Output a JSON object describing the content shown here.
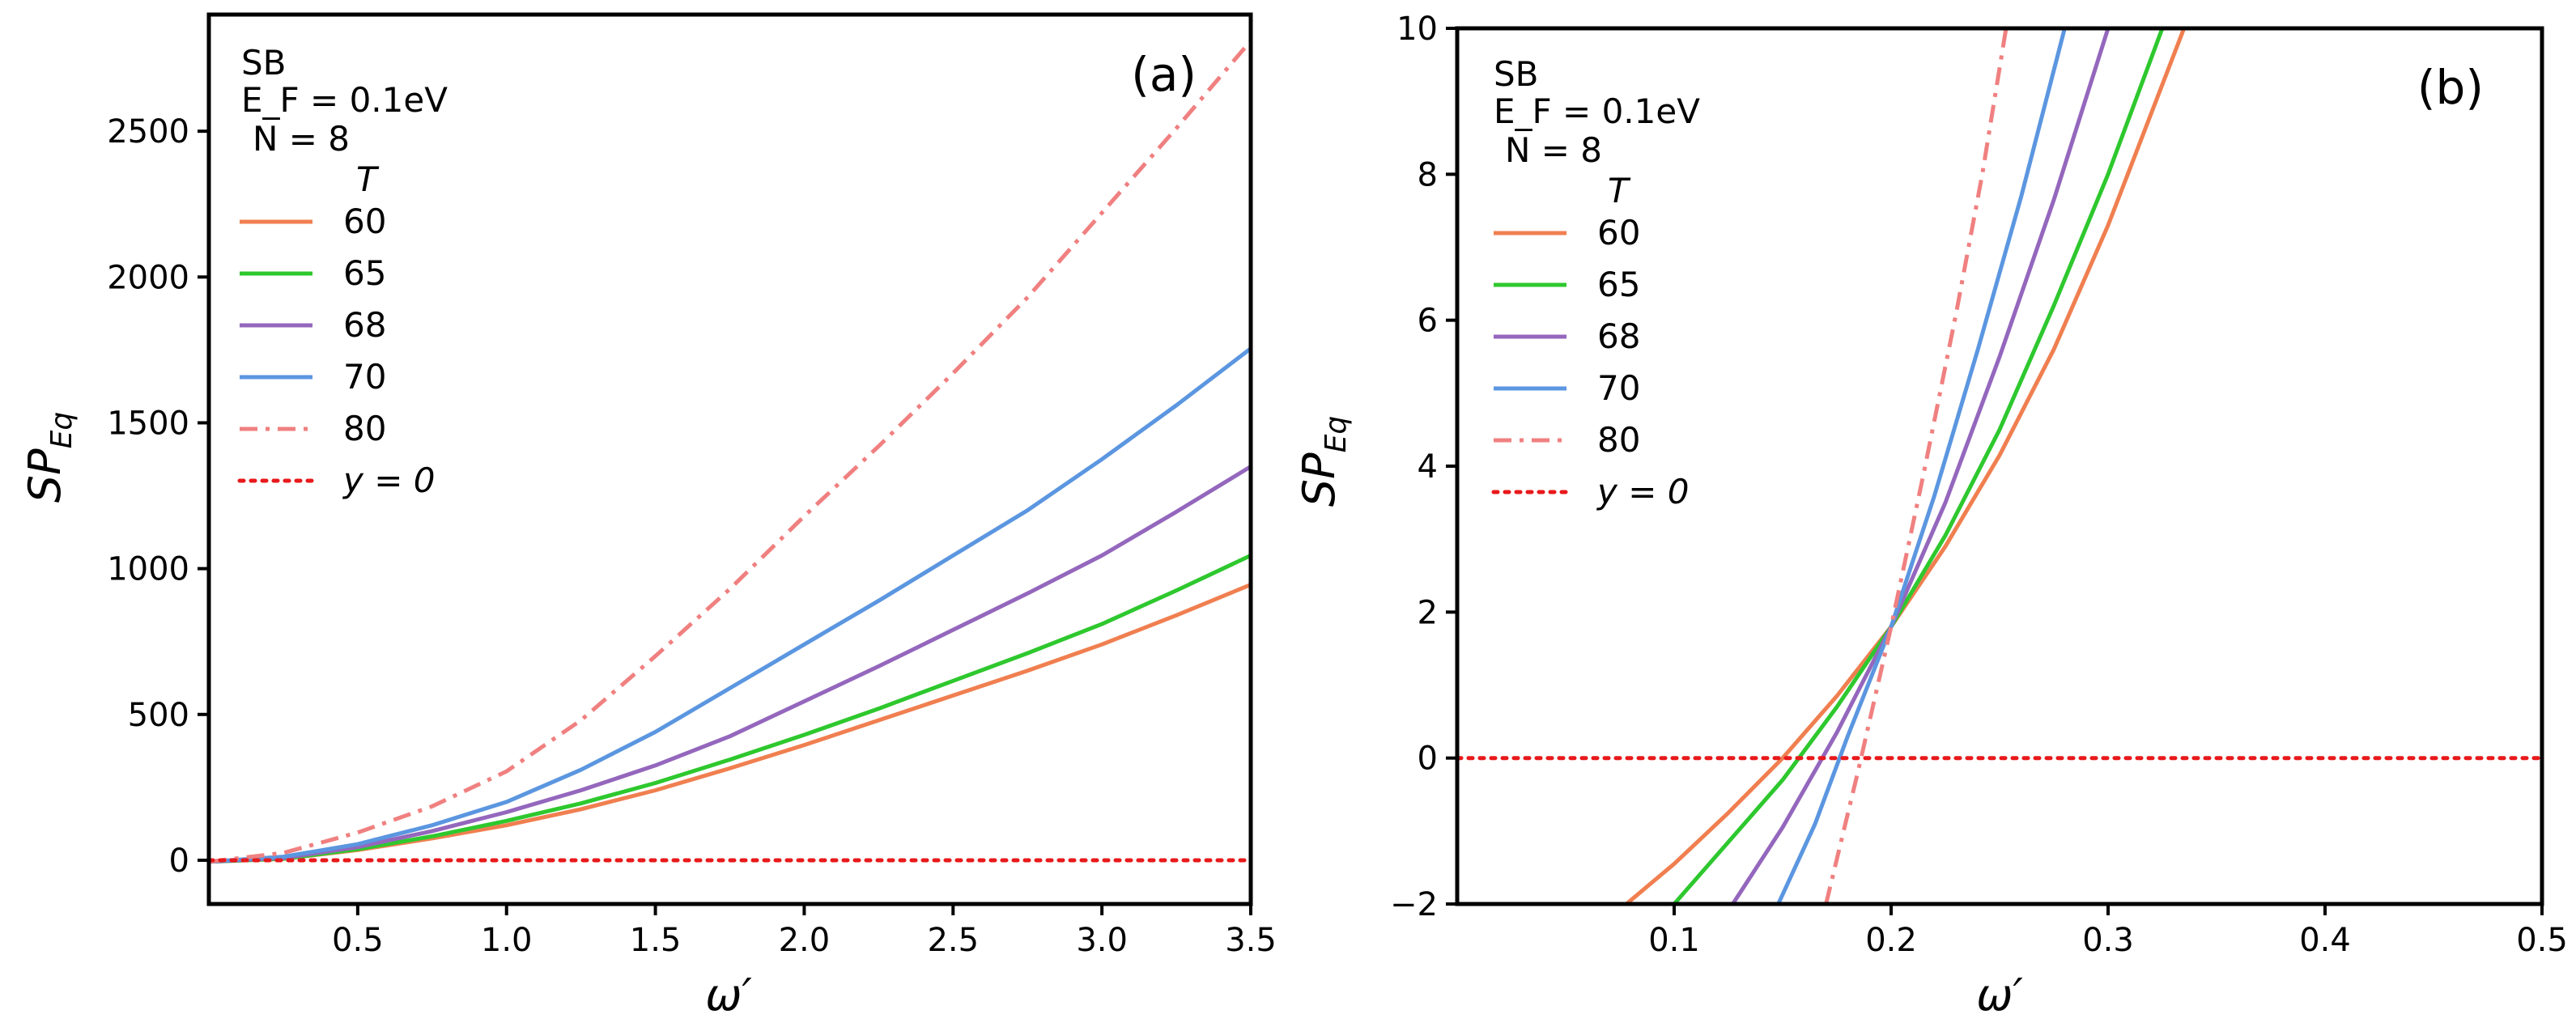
{
  "chart_data": [
    {
      "type": "line",
      "panel_label": "(a)",
      "xlabel": "ω′",
      "ylabel_main": "SP",
      "ylabel_sub": "Eq",
      "xlim": [
        0.0,
        3.5
      ],
      "ylim": [
        -150,
        2900
      ],
      "xticks": [
        0.5,
        1.0,
        1.5,
        2.0,
        2.5,
        3.0,
        3.5
      ],
      "xtick_labels": [
        "0.5",
        "1.0",
        "1.5",
        "2.0",
        "2.5",
        "3.0",
        "3.5"
      ],
      "yticks": [
        0,
        500,
        1000,
        1500,
        2000,
        2500
      ],
      "ytick_labels": [
        "0",
        "500",
        "1000",
        "1500",
        "2000",
        "2500"
      ],
      "annotation": {
        "line1": "SB",
        "line2": "E_F = 0.1eV",
        "line3": "N = 8"
      },
      "legend": {
        "title": "T",
        "entries": [
          "60",
          "65",
          "68",
          "70",
          "80",
          "y = 0"
        ]
      },
      "series": [
        {
          "name": "60",
          "color": "#f07f50",
          "dash": "solid",
          "x": [
            0.0,
            0.25,
            0.5,
            0.75,
            1.0,
            1.25,
            1.5,
            1.75,
            2.0,
            2.25,
            2.5,
            2.75,
            3.0,
            3.25,
            3.5
          ],
          "y": [
            -5,
            5,
            35,
            75,
            120,
            175,
            240,
            315,
            395,
            480,
            565,
            650,
            740,
            840,
            945
          ]
        },
        {
          "name": "65",
          "color": "#2ec82e",
          "dash": "solid",
          "x": [
            0.0,
            0.25,
            0.5,
            0.75,
            1.0,
            1.25,
            1.5,
            1.75,
            2.0,
            2.25,
            2.5,
            2.75,
            3.0,
            3.25,
            3.5
          ],
          "y": [
            -5,
            5,
            38,
            82,
            135,
            195,
            265,
            345,
            430,
            520,
            615,
            710,
            810,
            925,
            1045
          ]
        },
        {
          "name": "68",
          "color": "#9467bd",
          "dash": "solid",
          "x": [
            0.0,
            0.25,
            0.5,
            0.75,
            1.0,
            1.25,
            1.5,
            1.75,
            2.0,
            2.25,
            2.5,
            2.75,
            3.0,
            3.25,
            3.5
          ],
          "y": [
            -5,
            8,
            45,
            100,
            165,
            240,
            325,
            425,
            545,
            665,
            790,
            915,
            1045,
            1195,
            1350
          ]
        },
        {
          "name": "70",
          "color": "#5b96e0",
          "dash": "solid",
          "x": [
            0.0,
            0.25,
            0.5,
            0.75,
            1.0,
            1.25,
            1.5,
            1.75,
            2.0,
            2.25,
            2.5,
            2.75,
            3.0,
            3.25,
            3.5
          ],
          "y": [
            -5,
            12,
            55,
            120,
            200,
            310,
            440,
            590,
            740,
            890,
            1045,
            1200,
            1375,
            1560,
            1755
          ]
        },
        {
          "name": "80",
          "color": "#f08080",
          "dash": "dashdot",
          "x": [
            0.0,
            0.25,
            0.5,
            0.75,
            1.0,
            1.25,
            1.5,
            1.75,
            2.0,
            2.25,
            2.5,
            2.75,
            3.0,
            3.25,
            3.5
          ],
          "y": [
            -5,
            25,
            95,
            185,
            305,
            480,
            700,
            930,
            1180,
            1420,
            1670,
            1930,
            2220,
            2510,
            2810
          ]
        },
        {
          "name": "y = 0",
          "color": "#e8191b",
          "dash": "dotted",
          "x": [
            0.0,
            3.5
          ],
          "y": [
            0,
            0
          ]
        }
      ]
    },
    {
      "type": "line",
      "panel_label": "(b)",
      "xlabel": "ω′",
      "ylabel_main": "SP",
      "ylabel_sub": "Eq",
      "xlim": [
        0.0,
        0.5
      ],
      "ylim": [
        -2,
        10
      ],
      "xticks": [
        0.1,
        0.2,
        0.3,
        0.4,
        0.5
      ],
      "xtick_labels": [
        "0.1",
        "0.2",
        "0.3",
        "0.4",
        "0.5"
      ],
      "yticks": [
        -2,
        0,
        2,
        4,
        6,
        8,
        10
      ],
      "ytick_labels": [
        "−2",
        "0",
        "2",
        "4",
        "6",
        "8",
        "10"
      ],
      "annotation": {
        "line1": "SB",
        "line2": "E_F = 0.1eV",
        "line3": "N = 8"
      },
      "legend": {
        "title": "T",
        "entries": [
          "60",
          "65",
          "68",
          "70",
          "80",
          "y = 0"
        ]
      },
      "series": [
        {
          "name": "60",
          "color": "#f07f50",
          "dash": "solid",
          "x": [
            0.078,
            0.1,
            0.125,
            0.15,
            0.175,
            0.2,
            0.225,
            0.25,
            0.275,
            0.3,
            0.335
          ],
          "y": [
            -2,
            -1.45,
            -0.75,
            0.0,
            0.85,
            1.8,
            2.9,
            4.15,
            5.6,
            7.3,
            10
          ]
        },
        {
          "name": "65",
          "color": "#2ec82e",
          "dash": "solid",
          "x": [
            0.1,
            0.125,
            0.15,
            0.175,
            0.2,
            0.225,
            0.25,
            0.275,
            0.3,
            0.325
          ],
          "y": [
            -2,
            -1.15,
            -0.3,
            0.7,
            1.8,
            3.05,
            4.5,
            6.2,
            8.0,
            10
          ]
        },
        {
          "name": "68",
          "color": "#9467bd",
          "dash": "solid",
          "x": [
            0.127,
            0.15,
            0.175,
            0.2,
            0.225,
            0.25,
            0.275,
            0.3
          ],
          "y": [
            -2,
            -0.95,
            0.35,
            1.8,
            3.5,
            5.5,
            7.65,
            10
          ]
        },
        {
          "name": "70",
          "color": "#5b96e0",
          "dash": "solid",
          "x": [
            0.148,
            0.165,
            0.18,
            0.2,
            0.22,
            0.24,
            0.26,
            0.28
          ],
          "y": [
            -2,
            -0.9,
            0.3,
            1.8,
            3.6,
            5.6,
            7.7,
            10
          ]
        },
        {
          "name": "80",
          "color": "#f08080",
          "dash": "dashdot",
          "x": [
            0.17,
            0.185,
            0.2,
            0.215,
            0.23,
            0.242,
            0.253
          ],
          "y": [
            -2,
            -0.15,
            1.8,
            3.9,
            6.1,
            8.0,
            10
          ]
        },
        {
          "name": "y = 0",
          "color": "#e8191b",
          "dash": "dotted",
          "x": [
            0.0,
            0.5
          ],
          "y": [
            0,
            0
          ]
        }
      ]
    }
  ]
}
